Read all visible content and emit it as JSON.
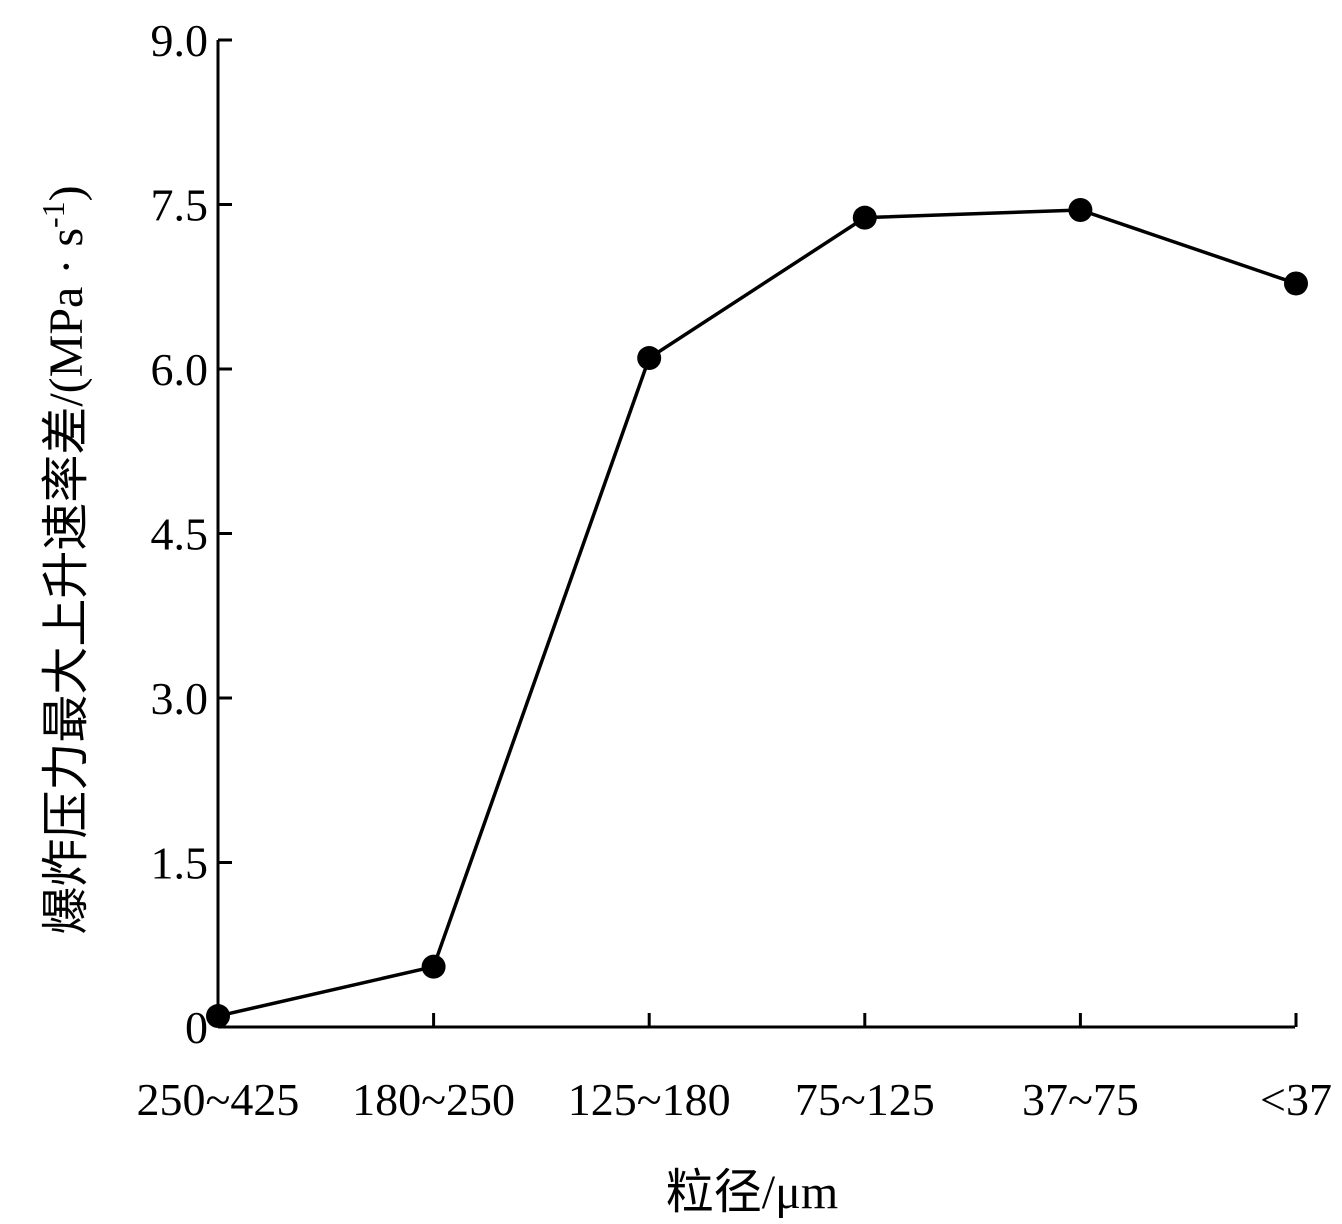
{
  "chart_data": {
    "type": "line",
    "categories": [
      "250~425",
      "180~250",
      "125~180",
      "75~125",
      "37~75",
      "<37"
    ],
    "series": [
      {
        "values": [
          0.1,
          0.55,
          6.1,
          7.38,
          7.45,
          6.78
        ]
      }
    ],
    "xlabel": "粒径/μm",
    "ylabel": "爆炸压力最大上升速率差/(MPa · s",
    "ylabel_superscript": "-1",
    "ylabel_close": ")",
    "ylim": [
      0,
      9.0
    ],
    "yticks": [
      "0",
      "1.5",
      "3.0",
      "4.5",
      "6.0",
      "7.5",
      "9.0"
    ],
    "ytick_values": [
      0,
      1.5,
      3.0,
      4.5,
      6.0,
      7.5,
      9.0
    ],
    "grid": false,
    "colors": {
      "line": "#000000",
      "marker": "#000000"
    }
  }
}
